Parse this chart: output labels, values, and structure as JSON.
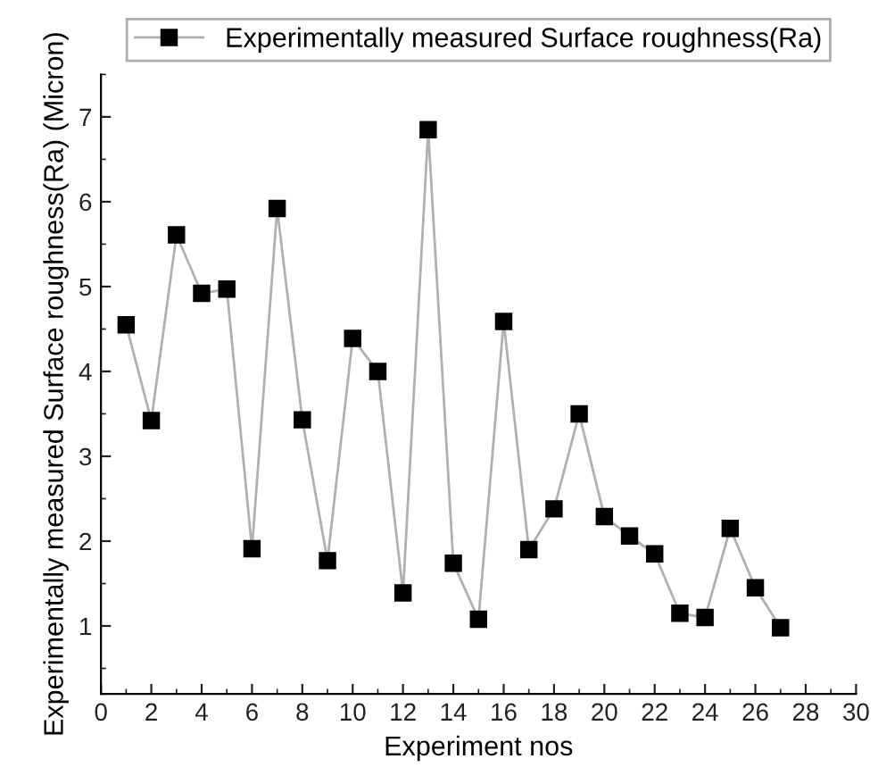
{
  "chart_data": {
    "type": "line",
    "xlabel": "Experiment nos",
    "ylabel": "Experimentally measured Surface roughness(Ra) (Micron)",
    "x": [
      1,
      2,
      3,
      4,
      5,
      6,
      7,
      8,
      9,
      10,
      11,
      12,
      13,
      14,
      15,
      16,
      17,
      18,
      19,
      20,
      21,
      22,
      23,
      24,
      25,
      26,
      27
    ],
    "series": [
      {
        "name": "Experimentally measured Surface roughness(Ra)",
        "color": "#000000",
        "values": [
          4.55,
          3.42,
          5.61,
          4.92,
          4.97,
          1.91,
          5.92,
          3.43,
          1.77,
          4.39,
          4.0,
          1.39,
          6.85,
          1.74,
          1.08,
          4.59,
          1.9,
          2.38,
          3.5,
          2.29,
          2.06,
          1.85,
          1.15,
          1.1,
          2.15,
          1.45,
          0.98
        ]
      }
    ],
    "xlim": [
      0,
      30
    ],
    "xticks": [
      0,
      2,
      4,
      6,
      8,
      10,
      12,
      14,
      16,
      18,
      20,
      22,
      24,
      26,
      28,
      30
    ],
    "ylim": [
      0.2,
      7.5
    ],
    "yticks": [
      1,
      2,
      3,
      4,
      5,
      6,
      7
    ],
    "marker": "square",
    "line_style": "solid",
    "legend": "top",
    "grid": false
  }
}
